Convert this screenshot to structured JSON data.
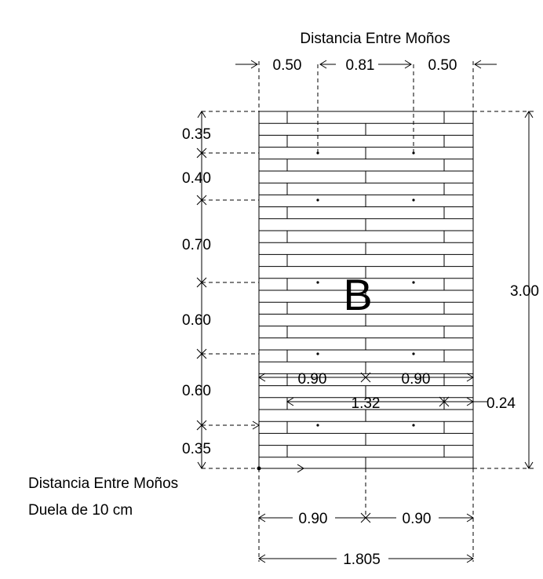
{
  "title_top": "Distancia Entre Moños",
  "top_dims": {
    "left": "0.50",
    "mid": "0.81",
    "right": "0.50"
  },
  "left_dims": [
    "0.35",
    "0.40",
    "0.70",
    "0.60",
    "0.60",
    "0.35"
  ],
  "right_dim": "3.00",
  "panel_label": "B",
  "inner_dims": {
    "a": "0.90",
    "b": "0.90",
    "span": "1.32",
    "offset": "0.24"
  },
  "bottom_dims": {
    "a": "0.90",
    "b": "0.90",
    "total": "1.805"
  },
  "note_line1": "Distancia Entre Moños",
  "note_line2": "Duela de 10 cm"
}
